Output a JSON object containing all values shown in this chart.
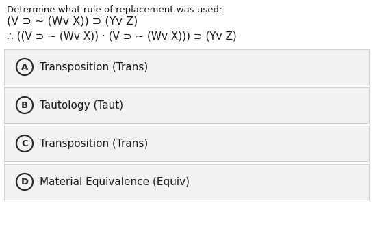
{
  "title": "Determine what rule of replacement was used:",
  "line1": "(V ⊃ ~ (Wv X)) ⊃ (Yv Z)",
  "line2": "∴ ((V ⊃ ~ (Wv X)) · (V ⊃ ~ (Wv X))) ⊃ (Yv Z)",
  "options": [
    {
      "label": "A",
      "text": "Transposition (Trans)"
    },
    {
      "label": "B",
      "text": "Tautology (Taut)"
    },
    {
      "label": "C",
      "text": "Transposition (Trans)"
    },
    {
      "label": "D",
      "text": "Material Equivalence (Equiv)"
    }
  ],
  "bg_color": "#ffffff",
  "option_bg_color": "#f2f2f2",
  "option_border_color": "#d0d0d0",
  "text_color": "#1a1a1a",
  "circle_color": "#2a2a2a",
  "title_fontsize": 9.5,
  "formula_fontsize": 11.5,
  "option_label_fontsize": 9.5,
  "option_text_fontsize": 11.0
}
